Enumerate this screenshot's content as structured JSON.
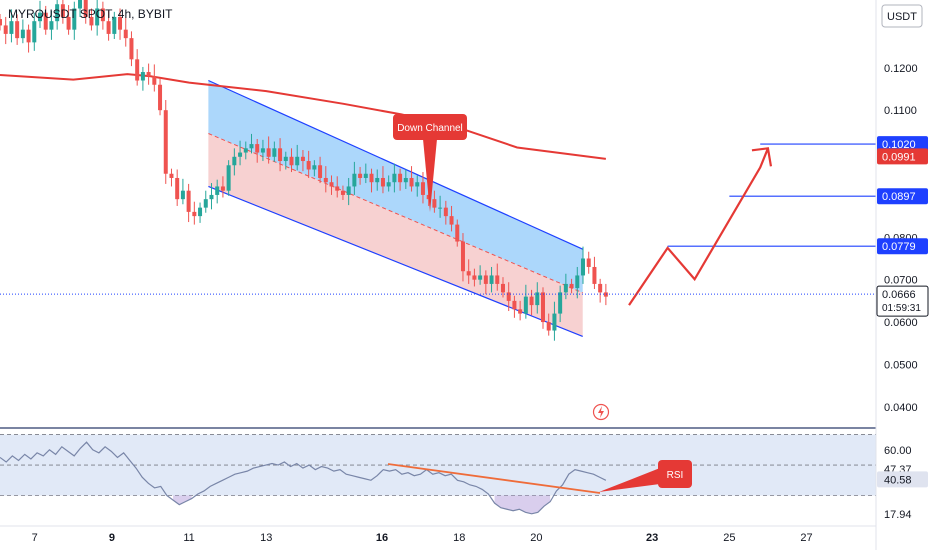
{
  "header": {
    "symbol": "MYROUSDT SPOT, 4h, BYBIT",
    "currency": "USDT"
  },
  "colors": {
    "up": "#26a69a",
    "down": "#ef5350",
    "ma": "#e53935",
    "channel": "#1e40ff",
    "channel_upper_fill": "#90caf9",
    "channel_lower_fill": "#f5c6c6",
    "target_line": "#1e40ff",
    "arrow": "#e53935",
    "rsi_line": "#7986a8",
    "rsi_fill": "#c8d7f0",
    "trend_line": "#ef6c3a",
    "current_price_bg": "#1e40ff",
    "annotation_bg": "#e53935"
  },
  "chart_data": [
    {
      "type": "candlestick",
      "ylim": [
        0.035,
        0.136
      ],
      "xlim": [
        6.1,
        28.8
      ],
      "x_unit": "day of month",
      "y_ticks": [
        "0.1200",
        "0.1100",
        "0.0800",
        "0.0700",
        "0.0600",
        "0.0500",
        "0.0400"
      ],
      "y_tick_values": [
        0.12,
        0.11,
        0.08,
        0.07,
        0.06,
        0.05,
        0.04
      ],
      "x_ticks": [
        "7",
        "9",
        "11",
        "13",
        "16",
        "18",
        "20",
        "23",
        "25",
        "27"
      ],
      "x_tick_values": [
        7,
        9,
        11,
        13,
        16,
        18,
        20,
        23,
        25,
        27
      ],
      "bold_x_ticks": [
        "9",
        "16",
        "23"
      ],
      "closes": [
        0.13,
        0.128,
        0.131,
        0.127,
        0.129,
        0.126,
        0.131,
        0.133,
        0.129,
        0.131,
        0.135,
        0.132,
        0.129,
        0.134,
        0.136,
        0.132,
        0.13,
        0.134,
        0.131,
        0.128,
        0.132,
        0.129,
        0.127,
        0.122,
        0.117,
        0.119,
        0.118,
        0.116,
        0.11,
        0.095,
        0.094,
        0.089,
        0.091,
        0.086,
        0.085,
        0.087,
        0.089,
        0.09,
        0.092,
        0.091,
        0.097,
        0.099,
        0.1,
        0.101,
        0.102,
        0.1,
        0.101,
        0.099,
        0.101,
        0.098,
        0.099,
        0.097,
        0.099,
        0.098,
        0.096,
        0.097,
        0.094,
        0.093,
        0.092,
        0.091,
        0.09,
        0.092,
        0.095,
        0.094,
        0.095,
        0.093,
        0.094,
        0.092,
        0.093,
        0.095,
        0.093,
        0.094,
        0.092,
        0.093,
        0.09,
        0.089,
        0.087,
        0.087,
        0.085,
        0.083,
        0.079,
        0.072,
        0.071,
        0.07,
        0.071,
        0.069,
        0.071,
        0.069,
        0.067,
        0.065,
        0.063,
        0.062,
        0.066,
        0.064,
        0.067,
        0.06,
        0.058,
        0.062,
        0.067,
        0.069,
        0.068,
        0.071,
        0.075,
        0.073,
        0.069,
        0.067,
        0.066
      ],
      "annotations": [
        "Down Channel",
        "RSI"
      ],
      "moving_average": [
        {
          "x": 6.1,
          "y": 0.1183
        },
        {
          "x": 8,
          "y": 0.1172
        },
        {
          "x": 9.4,
          "y": 0.1185
        },
        {
          "x": 10,
          "y": 0.118
        },
        {
          "x": 11,
          "y": 0.1165
        },
        {
          "x": 13,
          "y": 0.1145
        },
        {
          "x": 15,
          "y": 0.1115
        },
        {
          "x": 16.5,
          "y": 0.109
        },
        {
          "x": 18,
          "y": 0.1058
        },
        {
          "x": 19.5,
          "y": 0.1012
        },
        {
          "x": 21.8,
          "y": 0.0985
        }
      ],
      "channel": {
        "upper": [
          {
            "x": 11.5,
            "y": 0.117
          },
          {
            "x": 21.2,
            "y": 0.0772
          }
        ],
        "lower": [
          {
            "x": 11.5,
            "y": 0.092
          },
          {
            "x": 21.2,
            "y": 0.0566
          }
        ]
      },
      "projection_path": [
        {
          "x": 22.4,
          "y": 0.064
        },
        {
          "x": 23.4,
          "y": 0.0775
        },
        {
          "x": 24.1,
          "y": 0.0701
        },
        {
          "x": 25.8,
          "y": 0.0965
        }
      ],
      "projection_arrow_tip": {
        "x": 26.0,
        "y": 0.101
      },
      "target_lines": [
        {
          "value": 0.102,
          "label": "0.1020",
          "x_start": 25.8
        },
        {
          "value": 0.0897,
          "label": "0.0897",
          "x_start": 25.0
        },
        {
          "value": 0.0779,
          "label": "0.0779",
          "x_start": 23.4
        }
      ],
      "current_price": {
        "value": 0.0666,
        "label": "0.0666",
        "countdown": "01:59:31"
      },
      "ma_value_label": "0.0991",
      "ma_label_value": 0.0991
    },
    {
      "type": "line",
      "title": "RSI",
      "ylim": [
        10,
        73
      ],
      "y_ticks": [
        "60.00",
        "17.94"
      ],
      "y_tick_values": [
        60,
        17.94
      ],
      "badges": [
        {
          "label": "47.37",
          "value": 47.37
        },
        {
          "label": "40.58",
          "value": 40.58
        }
      ],
      "bands": [
        70,
        50,
        30
      ],
      "values": [
        55,
        52,
        56,
        53,
        57,
        54,
        58,
        56,
        60,
        57,
        62,
        59,
        56,
        61,
        65,
        60,
        58,
        62,
        59,
        55,
        58,
        53,
        48,
        42,
        38,
        35,
        36,
        30,
        27,
        24,
        26,
        28,
        31,
        33,
        36,
        38,
        40,
        42,
        44,
        45,
        46,
        48,
        49,
        50,
        51,
        50,
        52,
        49,
        51,
        48,
        50,
        47,
        49,
        48,
        46,
        47,
        44,
        43,
        42,
        41,
        40,
        43,
        47,
        46,
        47,
        44,
        45,
        43,
        44,
        47,
        44,
        45,
        43,
        44,
        40,
        39,
        37,
        36,
        34,
        31,
        25,
        22,
        21,
        20,
        21,
        19,
        18,
        19,
        23,
        26,
        33,
        37,
        44,
        47,
        46,
        45,
        44,
        42,
        40
      ]
    }
  ]
}
